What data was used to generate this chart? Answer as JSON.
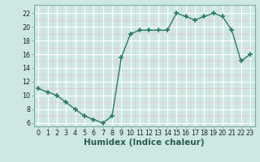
{
  "x": [
    0,
    1,
    2,
    3,
    4,
    5,
    6,
    7,
    8,
    9,
    10,
    11,
    12,
    13,
    14,
    15,
    16,
    17,
    18,
    19,
    20,
    21,
    22,
    23
  ],
  "y": [
    11,
    10.5,
    10,
    9,
    8,
    7,
    6.5,
    6,
    7,
    15.5,
    19,
    19.5,
    19.5,
    19.5,
    19.5,
    22,
    21.5,
    21,
    21.5,
    22,
    21.5,
    19.5,
    15,
    16
  ],
  "line_color": "#2a7a6a",
  "marker": "+",
  "marker_size": 4,
  "marker_lw": 1.2,
  "bg_color": "#cde8e4",
  "minor_grid_color": "#e8c8c8",
  "major_grid_color": "#ffffff",
  "xlabel": "Humidex (Indice chaleur)",
  "xlim": [
    -0.5,
    23.5
  ],
  "ylim": [
    5.5,
    23.2
  ],
  "yticks": [
    6,
    8,
    10,
    12,
    14,
    16,
    18,
    20,
    22
  ],
  "xticks": [
    0,
    1,
    2,
    3,
    4,
    5,
    6,
    7,
    8,
    9,
    10,
    11,
    12,
    13,
    14,
    15,
    16,
    17,
    18,
    19,
    20,
    21,
    22,
    23
  ],
  "tick_label_fontsize": 5.8,
  "xlabel_fontsize": 7.5,
  "line_width": 1.0
}
